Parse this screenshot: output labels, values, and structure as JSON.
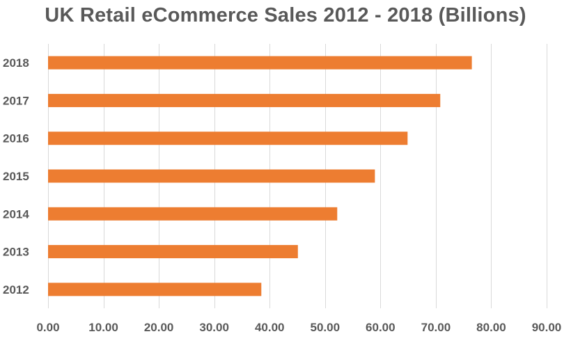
{
  "chart_data": {
    "type": "bar",
    "orientation": "horizontal",
    "title": "UK Retail eCommerce Sales 2012 - 2018 (Billions)",
    "xlabel": "",
    "ylabel": "",
    "categories": [
      "2018",
      "2017",
      "2016",
      "2015",
      "2014",
      "2013",
      "2012"
    ],
    "values": [
      76.5,
      70.8,
      64.9,
      59.0,
      52.2,
      45.1,
      38.5
    ],
    "xlim": [
      0,
      90
    ],
    "x_ticks": [
      "0.00",
      "10.00",
      "20.00",
      "30.00",
      "40.00",
      "50.00",
      "60.00",
      "70.00",
      "80.00",
      "90.00"
    ],
    "grid": "vertical",
    "bar_color": "#ED7D31",
    "grid_color": "#D9D9D9",
    "text_color": "#595959"
  }
}
